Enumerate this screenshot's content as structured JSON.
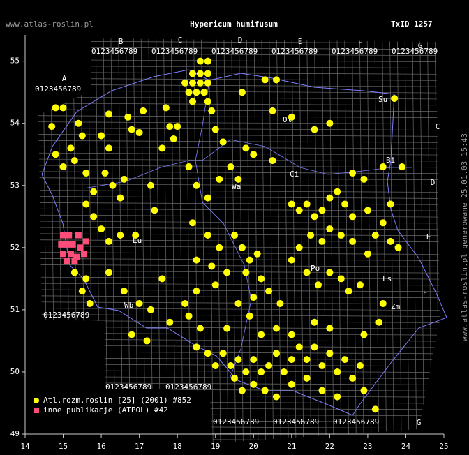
{
  "header": {
    "site": "www.atlas-roslin.pl",
    "title": "Hypericum humifusum",
    "taxon_id": "TxID 1257"
  },
  "map": {
    "xlim": [
      14,
      25
    ],
    "ylim": [
      49,
      55.4
    ],
    "xticks": [
      14,
      15,
      16,
      17,
      18,
      19,
      20,
      21,
      22,
      23,
      24,
      25
    ],
    "yticks": [
      49,
      50,
      51,
      52,
      53,
      54,
      55
    ],
    "grid_letters": [
      "A",
      "B",
      "C",
      "D",
      "E",
      "F",
      "G"
    ],
    "grid_digits": "0123456789",
    "regions": [
      "Su",
      "Ol",
      "Bi",
      "Ci",
      "Po",
      "Ls",
      "Wa",
      "Zm",
      "Wb",
      "Lu"
    ],
    "points": {
      "atlas": [
        [
          18.6,
          55.0
        ],
        [
          18.8,
          55.0
        ],
        [
          18.4,
          54.8
        ],
        [
          18.6,
          54.8
        ],
        [
          18.8,
          54.8
        ],
        [
          18.2,
          54.65
        ],
        [
          18.4,
          54.65
        ],
        [
          18.6,
          54.65
        ],
        [
          18.8,
          54.65
        ],
        [
          18.3,
          54.5
        ],
        [
          18.5,
          54.5
        ],
        [
          18.7,
          54.5
        ],
        [
          18.4,
          54.35
        ],
        [
          18.8,
          54.35
        ],
        [
          14.8,
          54.25
        ],
        [
          15.0,
          54.25
        ],
        [
          14.7,
          53.95
        ],
        [
          15.4,
          54.0
        ],
        [
          15.5,
          53.8
        ],
        [
          15.2,
          53.6
        ],
        [
          15.3,
          53.4
        ],
        [
          15.0,
          53.3
        ],
        [
          15.6,
          53.2
        ],
        [
          14.8,
          53.5
        ],
        [
          16.2,
          54.15
        ],
        [
          16.7,
          54.1
        ],
        [
          17.1,
          54.2
        ],
        [
          16.8,
          53.9
        ],
        [
          17.0,
          53.85
        ],
        [
          17.7,
          54.25
        ],
        [
          17.8,
          53.95
        ],
        [
          17.9,
          53.75
        ],
        [
          18.0,
          53.95
        ],
        [
          17.6,
          53.6
        ],
        [
          16.0,
          53.8
        ],
        [
          16.2,
          53.6
        ],
        [
          16.1,
          53.2
        ],
        [
          16.3,
          53.0
        ],
        [
          16.5,
          52.8
        ],
        [
          16.6,
          53.1
        ],
        [
          17.3,
          53.0
        ],
        [
          17.4,
          52.6
        ],
        [
          15.8,
          52.9
        ],
        [
          15.6,
          52.7
        ],
        [
          15.8,
          52.5
        ],
        [
          16.0,
          52.3
        ],
        [
          16.2,
          52.1
        ],
        [
          16.5,
          52.2
        ],
        [
          16.9,
          52.2
        ],
        [
          15.3,
          51.6
        ],
        [
          15.6,
          51.5
        ],
        [
          15.5,
          51.3
        ],
        [
          15.7,
          51.1
        ],
        [
          16.2,
          51.6
        ],
        [
          16.6,
          51.3
        ],
        [
          17.0,
          51.1
        ],
        [
          17.3,
          51.0
        ],
        [
          16.8,
          50.6
        ],
        [
          17.2,
          50.5
        ],
        [
          17.6,
          51.5
        ],
        [
          17.8,
          50.8
        ],
        [
          18.3,
          53.3
        ],
        [
          18.5,
          53.0
        ],
        [
          18.8,
          52.8
        ],
        [
          19.1,
          53.1
        ],
        [
          19.4,
          53.3
        ],
        [
          19.6,
          53.1
        ],
        [
          19.2,
          53.7
        ],
        [
          19.8,
          53.6
        ],
        [
          19.0,
          53.9
        ],
        [
          18.9,
          54.2
        ],
        [
          20.3,
          54.7
        ],
        [
          20.6,
          54.7
        ],
        [
          19.7,
          54.5
        ],
        [
          20.5,
          54.2
        ],
        [
          21.0,
          54.1
        ],
        [
          21.6,
          53.9
        ],
        [
          22.0,
          54.0
        ],
        [
          20.0,
          53.5
        ],
        [
          20.5,
          53.4
        ],
        [
          18.4,
          52.4
        ],
        [
          18.8,
          52.2
        ],
        [
          19.1,
          52.0
        ],
        [
          18.5,
          51.8
        ],
        [
          18.9,
          51.7
        ],
        [
          19.3,
          51.6
        ],
        [
          19.0,
          51.4
        ],
        [
          18.5,
          51.3
        ],
        [
          18.2,
          51.1
        ],
        [
          19.5,
          52.2
        ],
        [
          19.7,
          52.0
        ],
        [
          19.9,
          51.8
        ],
        [
          20.1,
          51.9
        ],
        [
          19.8,
          51.6
        ],
        [
          20.2,
          51.5
        ],
        [
          20.0,
          51.2
        ],
        [
          20.4,
          51.3
        ],
        [
          20.7,
          51.1
        ],
        [
          19.6,
          51.1
        ],
        [
          19.9,
          50.9
        ],
        [
          21.0,
          52.7
        ],
        [
          21.2,
          52.6
        ],
        [
          21.4,
          52.7
        ],
        [
          21.6,
          52.5
        ],
        [
          21.8,
          52.6
        ],
        [
          22.0,
          52.8
        ],
        [
          22.2,
          52.9
        ],
        [
          22.4,
          52.7
        ],
        [
          22.6,
          52.5
        ],
        [
          21.5,
          52.2
        ],
        [
          21.8,
          52.1
        ],
        [
          22.0,
          52.3
        ],
        [
          22.3,
          52.2
        ],
        [
          22.6,
          52.1
        ],
        [
          21.2,
          52.0
        ],
        [
          21.0,
          51.8
        ],
        [
          21.4,
          51.6
        ],
        [
          21.7,
          51.4
        ],
        [
          22.0,
          51.6
        ],
        [
          22.3,
          51.5
        ],
        [
          22.5,
          51.3
        ],
        [
          22.8,
          51.4
        ],
        [
          23.0,
          51.9
        ],
        [
          23.2,
          52.2
        ],
        [
          23.4,
          52.4
        ],
        [
          23.6,
          52.1
        ],
        [
          23.8,
          52.0
        ],
        [
          23.6,
          52.7
        ],
        [
          23.0,
          52.6
        ],
        [
          22.6,
          53.2
        ],
        [
          22.9,
          53.1
        ],
        [
          23.4,
          53.3
        ],
        [
          23.7,
          54.4
        ],
        [
          23.9,
          53.3
        ],
        [
          22.9,
          50.6
        ],
        [
          23.3,
          50.8
        ],
        [
          23.4,
          51.1
        ],
        [
          18.5,
          50.4
        ],
        [
          18.8,
          50.3
        ],
        [
          19.0,
          50.1
        ],
        [
          19.2,
          50.3
        ],
        [
          19.4,
          50.1
        ],
        [
          19.6,
          50.2
        ],
        [
          19.8,
          50.0
        ],
        [
          20.0,
          50.2
        ],
        [
          20.2,
          50.0
        ],
        [
          20.4,
          50.1
        ],
        [
          20.6,
          50.3
        ],
        [
          20.8,
          50.0
        ],
        [
          21.0,
          50.2
        ],
        [
          21.2,
          50.4
        ],
        [
          21.4,
          50.2
        ],
        [
          21.6,
          50.4
        ],
        [
          21.8,
          50.1
        ],
        [
          22.0,
          50.3
        ],
        [
          22.2,
          50.0
        ],
        [
          22.4,
          50.2
        ],
        [
          22.6,
          49.9
        ],
        [
          22.8,
          50.1
        ],
        [
          22.9,
          49.7
        ],
        [
          23.2,
          49.4
        ],
        [
          19.5,
          49.9
        ],
        [
          19.7,
          49.7
        ],
        [
          20.0,
          49.8
        ],
        [
          20.3,
          49.7
        ],
        [
          20.6,
          49.6
        ],
        [
          21.0,
          49.8
        ],
        [
          21.4,
          49.9
        ],
        [
          21.8,
          49.7
        ],
        [
          22.2,
          49.6
        ],
        [
          20.2,
          50.6
        ],
        [
          20.6,
          50.7
        ],
        [
          21.0,
          50.6
        ],
        [
          21.6,
          50.8
        ],
        [
          22.0,
          50.7
        ],
        [
          19.3,
          50.7
        ],
        [
          18.6,
          50.7
        ],
        [
          18.3,
          50.9
        ]
      ],
      "other": [
        [
          15.0,
          52.2
        ],
        [
          15.15,
          52.2
        ],
        [
          15.4,
          52.2
        ],
        [
          15.6,
          52.1
        ],
        [
          14.95,
          52.05
        ],
        [
          15.1,
          52.05
        ],
        [
          15.25,
          52.05
        ],
        [
          15.45,
          52.0
        ],
        [
          15.0,
          51.9
        ],
        [
          15.2,
          51.9
        ],
        [
          15.35,
          51.85
        ],
        [
          15.55,
          51.9
        ],
        [
          15.1,
          51.78
        ],
        [
          15.3,
          51.78
        ]
      ]
    },
    "legend": [
      {
        "label": "Atl.rozm.roslin [25] (2001) #852",
        "color": "#ffff00"
      },
      {
        "label": "inne publikacje (ATPOL) #42",
        "color": "#ff4d7a"
      }
    ]
  },
  "footer": "www.atlas-roslin.pl generowane 25.01.03 15:43"
}
